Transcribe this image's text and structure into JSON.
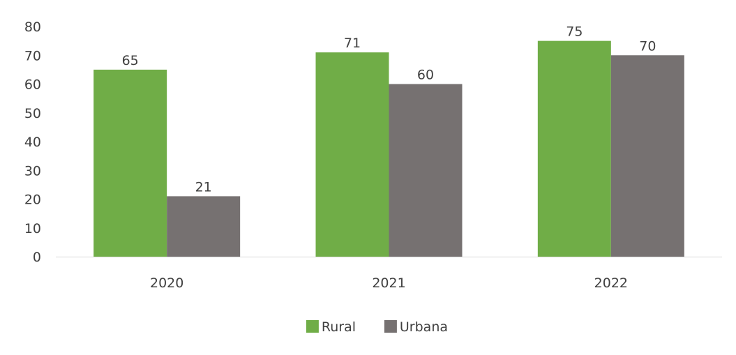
{
  "chart_data": {
    "type": "bar",
    "categories": [
      "2020",
      "2021",
      "2022"
    ],
    "series": [
      {
        "name": "Rural",
        "values": [
          65,
          71,
          75
        ],
        "color": "#70AD47"
      },
      {
        "name": "Urbana",
        "values": [
          21,
          60,
          70
        ],
        "color": "#767171"
      }
    ],
    "ylim": [
      0,
      80
    ],
    "yticks": [
      0,
      10,
      20,
      30,
      40,
      50,
      60,
      70,
      80
    ],
    "grid": false,
    "legend_position": "bottom",
    "data_labels": true,
    "axis_line_color": "#D9D9D9",
    "text_color": "#404040"
  }
}
